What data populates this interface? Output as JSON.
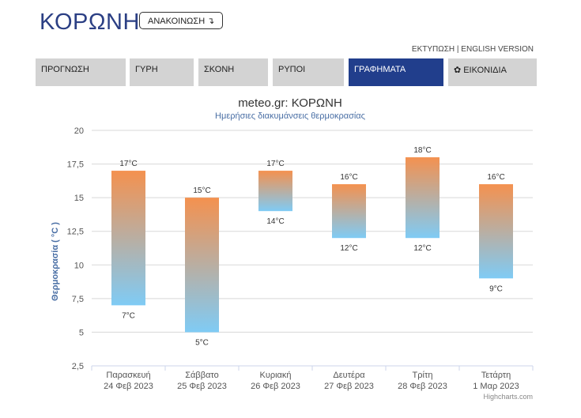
{
  "header": {
    "station": "ΚΟΡΩΝΗ",
    "announce_button": "ΑΝΑΚΟΙΝΩΣΗ",
    "print_link": "ΕΚΤΥΠΩΣΗ",
    "separator": "|",
    "english_link": "ENGLISH VERSION"
  },
  "tabs": [
    {
      "label": "ΠΡΟΓΝΩΣΗ",
      "active": false
    },
    {
      "label": "ΓΥΡΗ",
      "active": false
    },
    {
      "label": "ΣΚΟΝΗ",
      "active": false
    },
    {
      "label": "ΡΥΠΟΙ",
      "active": false
    },
    {
      "label": "ΓΡΑΦΗΜΑΤΑ",
      "active": true
    },
    {
      "label": "ΕΙΚΟΝΙΔΙΑ",
      "active": false,
      "icon": "gear-icon"
    }
  ],
  "colors": {
    "accent": "#213e8c",
    "tab_inactive": "#d3d3d3",
    "bar_top": "#f4914f",
    "bar_bottom": "#7fcbf5",
    "axis_title": "#4a6fa5"
  },
  "chart_data": {
    "type": "columnrange",
    "title": "meteo.gr: ΚΟΡΩΝΗ",
    "subtitle": "Ημερήσιες διακυμάνσεις θερμοκρασίας",
    "ylabel": "Θερμοκρασία ( °C )",
    "xlabel": "",
    "ylim": [
      2.5,
      20
    ],
    "yticks": [
      2.5,
      5,
      7.5,
      10,
      12.5,
      15,
      17.5,
      20
    ],
    "ytick_labels": [
      "2,5",
      "5",
      "7,5",
      "10",
      "12,5",
      "15",
      "17,5",
      "20"
    ],
    "grid": true,
    "unit_suffix": "°C",
    "credits": "Highcharts.com",
    "categories": [
      {
        "day": "Παρασκευή",
        "date": "24 Φεβ 2023",
        "low": 7,
        "high": 17
      },
      {
        "day": "Σάββατο",
        "date": "25 Φεβ 2023",
        "low": 5,
        "high": 15
      },
      {
        "day": "Κυριακή",
        "date": "26 Φεβ 2023",
        "low": 14,
        "high": 17
      },
      {
        "day": "Δευτέρα",
        "date": "27 Φεβ 2023",
        "low": 12,
        "high": 16
      },
      {
        "day": "Τρίτη",
        "date": "28 Φεβ 2023",
        "low": 12,
        "high": 18
      },
      {
        "day": "Τετάρτη",
        "date": "1 Μαρ 2023",
        "low": 9,
        "high": 16
      }
    ]
  }
}
